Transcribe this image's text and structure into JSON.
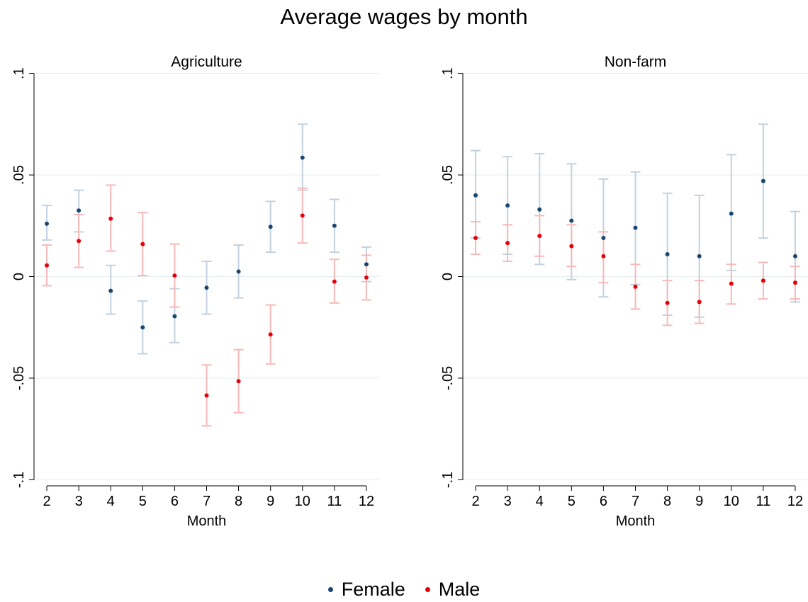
{
  "chart_data": {
    "type": "scatter",
    "title": "Average wages by month",
    "colors": {
      "Female": "#1a476f",
      "Male": "#e8000b",
      "Female_ci": "#c4d1dd",
      "Male_ci": "#f8b8b8",
      "grid": "#e4ecee"
    },
    "legend": {
      "position": "bottom",
      "entries": [
        "Female",
        "Male"
      ]
    },
    "panels": [
      {
        "title": "Agriculture",
        "xlabel": "Month",
        "ylabel": "",
        "x": [
          2,
          3,
          4,
          5,
          6,
          7,
          8,
          9,
          10,
          11,
          12
        ],
        "xlim": [
          1.6,
          12.4
        ],
        "ylim": [
          -0.103,
          0.103
        ],
        "yticks": [
          -0.1,
          -0.05,
          0,
          0.05,
          0.1
        ],
        "ytick_labels": [
          "-.1",
          "-.05",
          "0",
          ".05",
          ".1"
        ],
        "grid": true,
        "series": [
          {
            "name": "Female",
            "y": [
              0.026,
              0.0325,
              -0.007,
              -0.025,
              -0.0195,
              -0.0055,
              0.0025,
              0.0245,
              0.0585,
              0.025,
              0.006
            ],
            "lo": [
              0.018,
              0.022,
              -0.0185,
              -0.038,
              -0.0325,
              -0.0185,
              -0.0105,
              0.012,
              0.0425,
              0.012,
              -0.0025
            ],
            "hi": [
              0.035,
              0.0425,
              0.0055,
              -0.012,
              -0.006,
              0.0075,
              0.0155,
              0.037,
              0.075,
              0.038,
              0.0145
            ]
          },
          {
            "name": "Male",
            "y": [
              0.0055,
              0.0175,
              0.0285,
              0.016,
              0.0005,
              -0.0585,
              -0.0515,
              -0.0285,
              0.03,
              -0.0025,
              -0.0005
            ],
            "lo": [
              -0.0045,
              0.0045,
              0.0125,
              0.0005,
              -0.015,
              -0.0735,
              -0.067,
              -0.043,
              0.0165,
              -0.013,
              -0.0115
            ],
            "hi": [
              0.0155,
              0.0305,
              0.045,
              0.0315,
              0.016,
              -0.0435,
              -0.036,
              -0.014,
              0.0435,
              0.0085,
              0.0105
            ]
          }
        ]
      },
      {
        "title": "Non-farm",
        "xlabel": "Month",
        "ylabel": "",
        "x": [
          2,
          3,
          4,
          5,
          6,
          7,
          8,
          9,
          10,
          11,
          12
        ],
        "xlim": [
          1.6,
          12.4
        ],
        "ylim": [
          -0.103,
          0.103
        ],
        "yticks": [
          -0.1,
          -0.05,
          0,
          0.05,
          0.1
        ],
        "ytick_labels": [
          "-.1",
          "-.05",
          "0",
          ".05",
          ".1"
        ],
        "grid": true,
        "series": [
          {
            "name": "Female",
            "y": [
              0.04,
              0.035,
              0.033,
              0.0275,
              0.019,
              0.024,
              0.011,
              0.01,
              0.031,
              0.047,
              0.01
            ],
            "lo": [
              0.019,
              0.011,
              0.006,
              -0.0015,
              -0.01,
              -0.004,
              -0.019,
              -0.02,
              0.003,
              0.019,
              -0.0125
            ],
            "hi": [
              0.062,
              0.059,
              0.0605,
              0.0555,
              0.048,
              0.0515,
              0.041,
              0.04,
              0.06,
              0.075,
              0.032
            ]
          },
          {
            "name": "Male",
            "y": [
              0.019,
              0.0165,
              0.02,
              0.015,
              0.01,
              -0.005,
              -0.013,
              -0.0125,
              -0.0035,
              -0.002,
              -0.003
            ],
            "lo": [
              0.011,
              0.0075,
              0.01,
              0.005,
              -0.003,
              -0.016,
              -0.024,
              -0.023,
              -0.0135,
              -0.011,
              -0.011
            ],
            "hi": [
              0.027,
              0.0255,
              0.03,
              0.0255,
              0.022,
              0.006,
              -0.002,
              -0.002,
              0.006,
              0.007,
              0.005
            ]
          }
        ]
      }
    ]
  }
}
